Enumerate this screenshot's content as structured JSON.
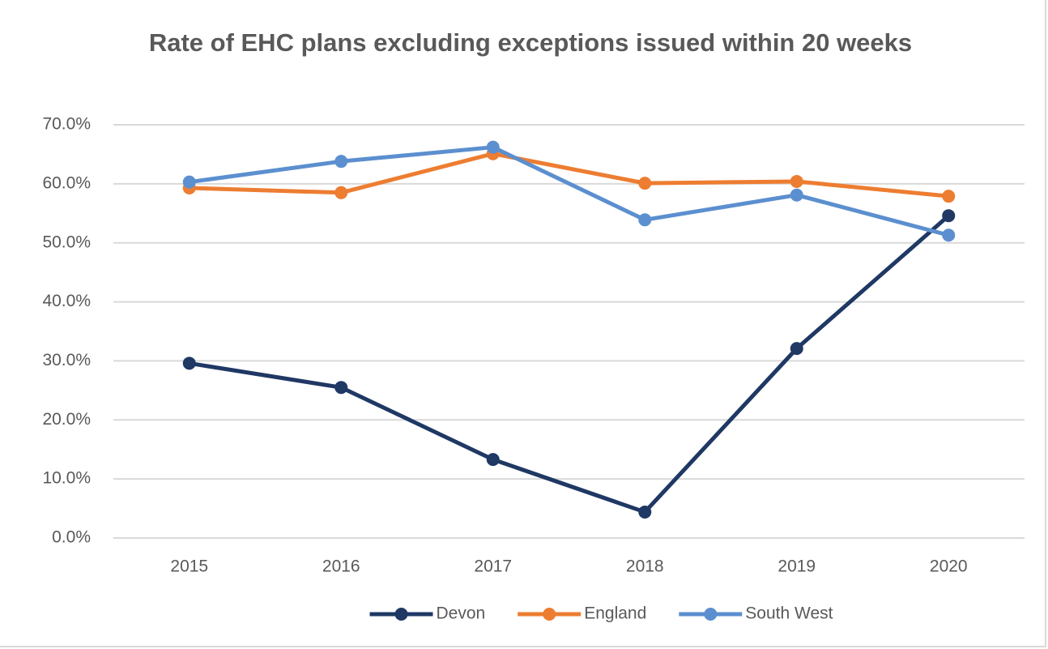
{
  "chart_data": {
    "type": "line",
    "title": "Rate of EHC plans excluding exceptions issued within 20 weeks",
    "categories": [
      "2015",
      "2016",
      "2017",
      "2018",
      "2019",
      "2020"
    ],
    "series": [
      {
        "name": "Devon",
        "color": "#1f3864",
        "values": [
          29.6,
          25.5,
          13.3,
          4.4,
          32.1,
          54.6
        ]
      },
      {
        "name": "England",
        "color": "#ed7d31",
        "values": [
          59.3,
          58.5,
          65.1,
          60.1,
          60.4,
          57.9
        ]
      },
      {
        "name": "South West",
        "color": "#5b8fcf",
        "values": [
          60.3,
          63.8,
          66.2,
          53.9,
          58.1,
          51.3
        ]
      }
    ],
    "ylim": [
      0,
      70
    ],
    "yticks": [
      {
        "value": 0,
        "label": "0.0%"
      },
      {
        "value": 10,
        "label": "10.0%"
      },
      {
        "value": 20,
        "label": "20.0%"
      },
      {
        "value": 30,
        "label": "30.0%"
      },
      {
        "value": 40,
        "label": "40.0%"
      },
      {
        "value": 50,
        "label": "50.0%"
      },
      {
        "value": 60,
        "label": "60.0%"
      },
      {
        "value": 70,
        "label": "70.0%"
      }
    ],
    "grid": true,
    "legend": "bottom"
  }
}
